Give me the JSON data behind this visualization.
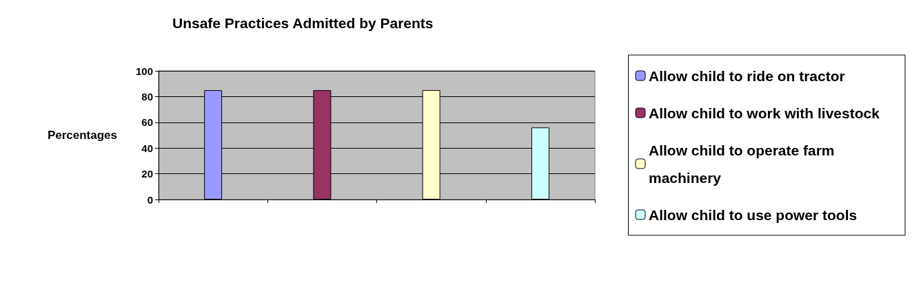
{
  "chart_data": {
    "type": "bar",
    "title": "Unsafe Practices Admitted by Parents",
    "ylabel": "Percentages",
    "categories": [
      null,
      null,
      null,
      null
    ],
    "series": [
      {
        "name": "Allow child to ride on tractor",
        "color": "#9999ff",
        "values": [
          85,
          null,
          null,
          null
        ]
      },
      {
        "name": "Allow child to work with livestock",
        "color": "#993366",
        "values": [
          null,
          85,
          null,
          null
        ]
      },
      {
        "name": "Allow child to operate farm machinery",
        "color": "#ffffcc",
        "values": [
          null,
          null,
          85,
          null
        ]
      },
      {
        "name": "Allow child to use power tools",
        "color": "#ccffff",
        "values": [
          null,
          null,
          null,
          56
        ]
      }
    ],
    "ylim": [
      0,
      100
    ],
    "yticks": [
      0,
      20,
      40,
      60,
      80,
      100
    ],
    "grid": "y",
    "legend": "right"
  }
}
